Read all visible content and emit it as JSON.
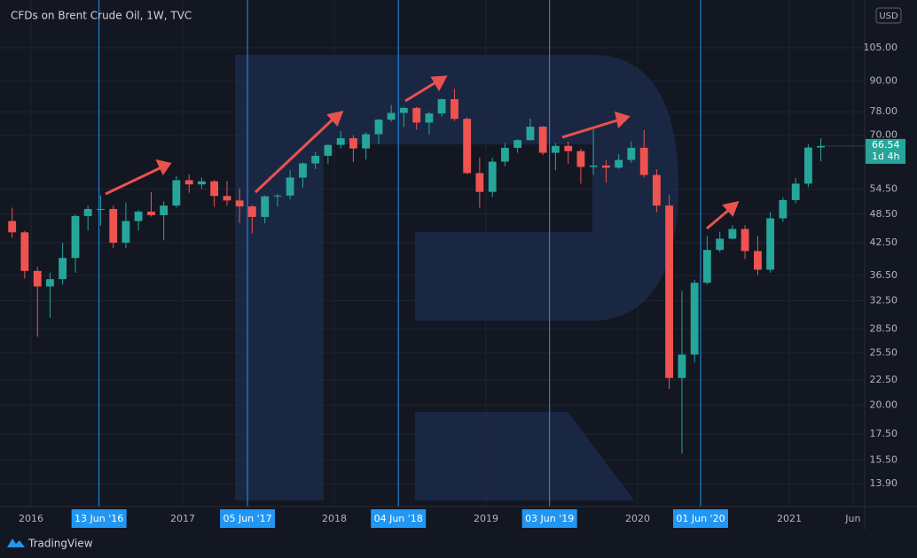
{
  "chart_data": {
    "type": "candlestick",
    "title": "CFDs on Brent Crude Oil, 1W, TVC",
    "currency": "USD",
    "x": [
      2015.875,
      2015.958,
      2016.042,
      2016.125,
      2016.208,
      2016.292,
      2016.375,
      2016.458,
      2016.542,
      2016.625,
      2016.708,
      2016.792,
      2016.875,
      2016.958,
      2017.042,
      2017.125,
      2017.208,
      2017.292,
      2017.375,
      2017.458,
      2017.542,
      2017.625,
      2017.708,
      2017.792,
      2017.875,
      2017.958,
      2018.042,
      2018.125,
      2018.208,
      2018.292,
      2018.375,
      2018.458,
      2018.542,
      2018.625,
      2018.708,
      2018.792,
      2018.875,
      2018.958,
      2019.042,
      2019.125,
      2019.208,
      2019.292,
      2019.375,
      2019.458,
      2019.542,
      2019.625,
      2019.708,
      2019.792,
      2019.875,
      2019.958,
      2020.042,
      2020.125,
      2020.208,
      2020.292,
      2020.375,
      2020.458,
      2020.542,
      2020.625,
      2020.708,
      2020.792,
      2020.875,
      2020.958,
      2021.042,
      2021.125,
      2021.208
    ],
    "open": [
      47.0,
      44.6,
      37.3,
      34.7,
      35.9,
      39.6,
      48.1,
      49.7,
      49.7,
      42.5,
      47.0,
      49.1,
      48.3,
      50.5,
      56.8,
      55.7,
      56.5,
      52.8,
      51.7,
      50.3,
      47.9,
      52.7,
      52.9,
      57.5,
      61.4,
      63.6,
      66.9,
      69.0,
      65.8,
      70.3,
      75.2,
      77.6,
      79.4,
      74.2,
      77.4,
      82.7,
      75.5,
      58.7,
      53.8,
      61.9,
      66.0,
      68.4,
      72.8,
      64.5,
      66.6,
      65.0,
      60.4,
      60.8,
      60.2,
      62.4,
      66.0,
      58.2,
      50.5,
      22.7,
      25.3,
      35.3,
      41.1,
      43.3,
      45.3,
      40.9,
      37.5,
      47.6,
      51.8,
      55.9,
      66.1
    ],
    "high": [
      50.0,
      44.9,
      38.0,
      37.0,
      42.5,
      48.5,
      50.5,
      52.9,
      50.5,
      51.2,
      49.5,
      53.7,
      51.5,
      57.9,
      58.4,
      57.5,
      56.9,
      56.6,
      54.7,
      50.6,
      52.9,
      53.3,
      59.5,
      61.7,
      64.7,
      67.1,
      71.3,
      70.0,
      71.0,
      75.5,
      80.5,
      79.8,
      79.8,
      78.0,
      82.9,
      86.7,
      76.0,
      63.1,
      63.0,
      67.5,
      68.7,
      75.6,
      73.0,
      67.5,
      68.0,
      65.7,
      71.9,
      62.3,
      64.1,
      68.0,
      71.7,
      59.7,
      53.0,
      34.0,
      35.8,
      43.9,
      44.7,
      46.1,
      46.1,
      43.9,
      49.0,
      52.5,
      57.4,
      67.1,
      69.0
    ],
    "low": [
      43.5,
      36.0,
      27.5,
      30.0,
      35.0,
      37.0,
      45.0,
      46.0,
      41.5,
      41.5,
      45.0,
      48.0,
      43.0,
      50.0,
      53.6,
      54.5,
      50.2,
      50.5,
      46.6,
      44.4,
      46.5,
      50.3,
      52.0,
      54.9,
      59.8,
      61.2,
      65.8,
      61.8,
      62.5,
      67.3,
      74.5,
      72.7,
      71.8,
      70.3,
      76.4,
      74.8,
      58.4,
      50.0,
      52.5,
      60.6,
      64.5,
      68.2,
      63.8,
      59.5,
      61.3,
      55.9,
      58.2,
      56.2,
      59.9,
      61.6,
      57.5,
      49.0,
      21.6,
      15.98,
      24.4,
      35.0,
      40.7,
      43.2,
      39.4,
      36.6,
      37.0,
      46.8,
      51.0,
      55.0,
      62.0
    ],
    "close": [
      44.6,
      37.3,
      34.7,
      35.9,
      39.6,
      48.1,
      49.7,
      49.7,
      42.5,
      47.0,
      49.1,
      48.3,
      50.5,
      56.8,
      55.7,
      56.5,
      52.8,
      51.7,
      50.3,
      47.9,
      52.7,
      52.9,
      57.5,
      61.4,
      63.6,
      66.9,
      69.0,
      65.8,
      70.3,
      75.2,
      77.6,
      79.4,
      74.2,
      77.4,
      82.7,
      75.5,
      58.7,
      53.8,
      61.9,
      66.0,
      68.4,
      72.8,
      64.5,
      66.6,
      65.0,
      60.4,
      60.8,
      60.2,
      62.4,
      66.0,
      58.2,
      50.5,
      22.7,
      25.3,
      35.3,
      41.1,
      43.3,
      45.3,
      40.9,
      37.5,
      47.6,
      51.8,
      55.9,
      66.1,
      66.54
    ],
    "up_color": "#26a69a",
    "down_color": "#ef5350",
    "xlim": [
      2015.795,
      2021.497
    ],
    "xticks": [
      2016,
      2017,
      2018,
      2019,
      2020,
      2021,
      {
        "value": 2021.42,
        "label": "Jun"
      }
    ],
    "ylim": [
      12.5,
      131
    ],
    "log_scale": true,
    "yticks": [
      {
        "value": 105,
        "label": "105.00"
      },
      {
        "value": 90,
        "label": "90.00"
      },
      {
        "value": 78,
        "label": "78.00"
      },
      {
        "value": 70,
        "label": "70.00"
      },
      {
        "value": 54.5,
        "label": "54.50"
      },
      {
        "value": 48.5,
        "label": "48.50"
      },
      {
        "value": 42.5,
        "label": "42.50"
      },
      {
        "value": 36.5,
        "label": "36.50"
      },
      {
        "value": 32.5,
        "label": "32.50"
      },
      {
        "value": 28.5,
        "label": "28.50"
      },
      {
        "value": 25.5,
        "label": "25.50"
      },
      {
        "value": 22.5,
        "label": "22.50"
      },
      {
        "value": 20,
        "label": "20.00"
      },
      {
        "value": 17.5,
        "label": "17.50"
      },
      {
        "value": 15.5,
        "label": "15.50"
      },
      {
        "value": 13.9,
        "label": "13.90"
      }
    ],
    "grid": true,
    "events": [
      {
        "value": 2016.448,
        "label": "13 Jun '16"
      },
      {
        "value": 2017.427,
        "label": "05 Jun '17"
      },
      {
        "value": 2018.422,
        "label": "04 Jun '18"
      },
      {
        "value": 2019.419,
        "label": "03 Jun '19"
      },
      {
        "value": 2020.415,
        "label": "01 Jun '20"
      }
    ],
    "event_color": "#2196f3",
    "last_price": 66.54,
    "countdown": "1d 4h",
    "last_color": "#26a69a"
  },
  "footer": {
    "brand": "TradingView"
  }
}
